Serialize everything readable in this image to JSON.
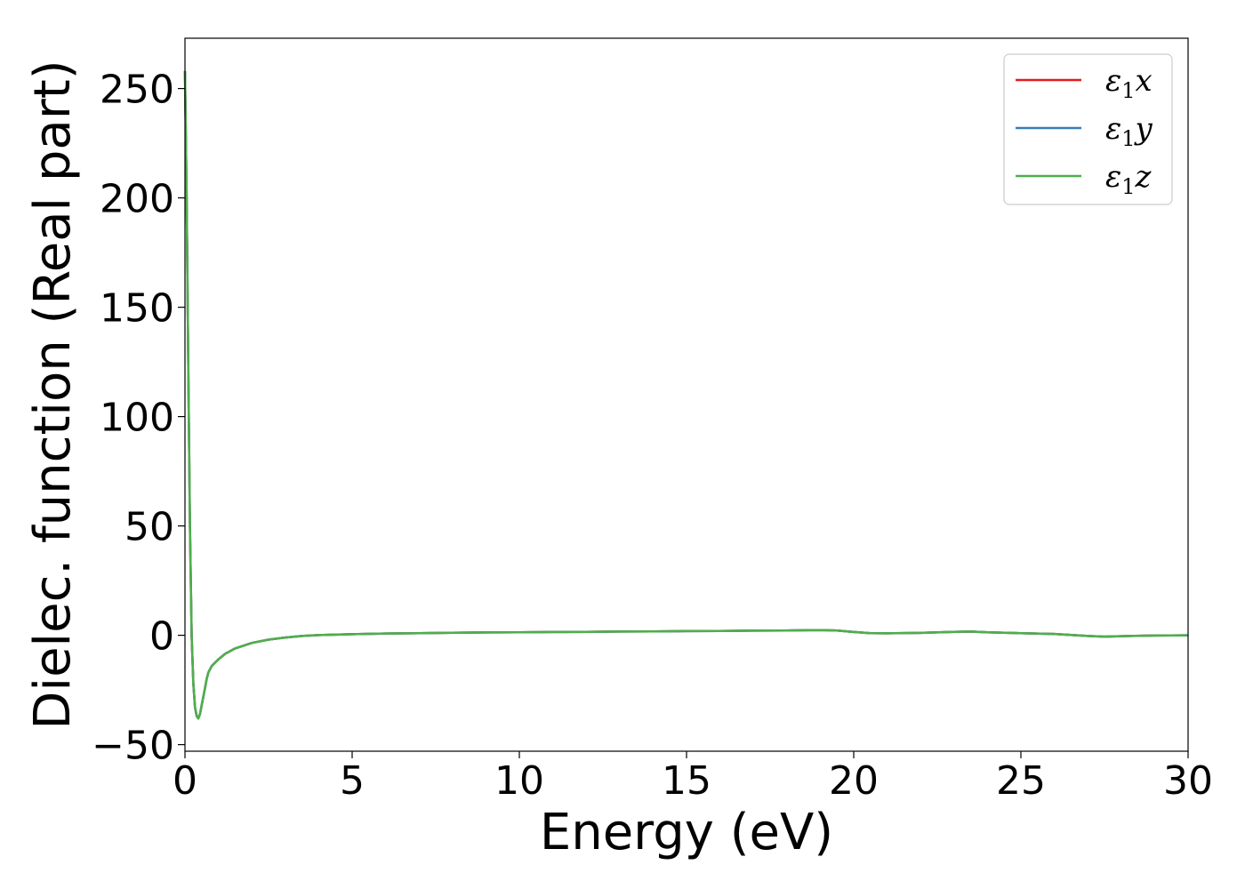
{
  "chart_data": {
    "type": "line",
    "title": "",
    "xlabel": "Energy (eV)",
    "ylabel": "Dielec. function (Real part)",
    "xlim": [
      0,
      30
    ],
    "ylim": [
      -53,
      273
    ],
    "xticks": [
      0,
      5,
      10,
      15,
      20,
      25,
      30
    ],
    "xtick_labels": [
      "0",
      "5",
      "10",
      "15",
      "20",
      "25",
      "30"
    ],
    "yticks": [
      -50,
      0,
      50,
      100,
      150,
      200,
      250
    ],
    "ytick_labels": [
      "−50",
      "0",
      "50",
      "100",
      "150",
      "200",
      "250"
    ],
    "grid": false,
    "legend_position": "top-right",
    "x": [
      0,
      0.05,
      0.1,
      0.15,
      0.2,
      0.25,
      0.3,
      0.35,
      0.4,
      0.45,
      0.5,
      0.55,
      0.6,
      0.65,
      0.7,
      0.8,
      0.9,
      1.0,
      1.2,
      1.5,
      2.0,
      2.5,
      3.0,
      3.5,
      4.0,
      4.5,
      5.0,
      6.0,
      7.0,
      8.0,
      9.0,
      10.0,
      11.0,
      12.0,
      13.0,
      14.0,
      15.0,
      16.0,
      17.0,
      18.0,
      19.0,
      19.5,
      20.0,
      20.5,
      21.0,
      22.0,
      23.0,
      23.5,
      24.0,
      25.0,
      26.0,
      27.0,
      27.5,
      28.0,
      29.0,
      30.0
    ],
    "series": [
      {
        "name": "x",
        "color": "#e41a1c",
        "values": [
          258,
          200,
          120,
          50,
          0,
          -22,
          -33,
          -37,
          -38,
          -36,
          -32,
          -28,
          -24,
          -20,
          -17,
          -14,
          -12.5,
          -11,
          -8.5,
          -6,
          -3.5,
          -2,
          -1,
          -0.3,
          0.1,
          0.3,
          0.5,
          0.8,
          1.0,
          1.2,
          1.3,
          1.4,
          1.5,
          1.6,
          1.7,
          1.8,
          1.9,
          2.0,
          2.1,
          2.2,
          2.4,
          2.2,
          1.5,
          1.0,
          0.9,
          1.1,
          1.6,
          1.7,
          1.4,
          1.0,
          0.6,
          -0.3,
          -0.6,
          -0.4,
          -0.1,
          0.0
        ]
      },
      {
        "name": "y",
        "color": "#377eb8",
        "values": [
          258,
          200,
          120,
          50,
          0,
          -22,
          -33,
          -37,
          -38,
          -36,
          -32,
          -28,
          -24,
          -20,
          -17,
          -14,
          -12.5,
          -11,
          -8.5,
          -6,
          -3.5,
          -2,
          -1,
          -0.3,
          0.1,
          0.3,
          0.5,
          0.8,
          1.0,
          1.2,
          1.3,
          1.4,
          1.5,
          1.6,
          1.7,
          1.8,
          1.9,
          2.0,
          2.1,
          2.2,
          2.4,
          2.2,
          1.5,
          1.0,
          0.9,
          1.1,
          1.6,
          1.7,
          1.4,
          1.0,
          0.6,
          -0.3,
          -0.6,
          -0.4,
          -0.1,
          0.0
        ]
      },
      {
        "name": "z",
        "color": "#4daf4a",
        "values": [
          258,
          200,
          120,
          50,
          0,
          -22,
          -33,
          -37,
          -38,
          -36,
          -32,
          -28,
          -24,
          -20,
          -17,
          -14,
          -12.5,
          -11,
          -8.5,
          -6,
          -3.5,
          -2,
          -1,
          -0.3,
          0.1,
          0.3,
          0.5,
          0.8,
          1.0,
          1.2,
          1.3,
          1.4,
          1.5,
          1.6,
          1.7,
          1.8,
          1.9,
          2.0,
          2.1,
          2.2,
          2.4,
          2.2,
          1.5,
          1.0,
          0.9,
          1.1,
          1.6,
          1.7,
          1.4,
          1.0,
          0.6,
          -0.3,
          -0.6,
          -0.4,
          -0.1,
          0.0
        ]
      }
    ],
    "legend": {
      "symbol": "ε",
      "subscript": "1",
      "entries": [
        "x",
        "y",
        "z"
      ]
    }
  }
}
